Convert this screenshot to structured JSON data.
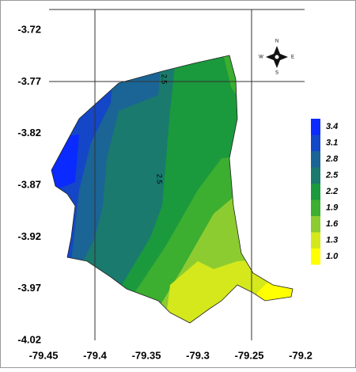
{
  "map": {
    "xlim": [
      -79.45,
      -79.2
    ],
    "ylim": [
      -4.02,
      -3.7
    ],
    "xticks": [
      -79.45,
      -79.4,
      -79.35,
      -79.3,
      -79.25,
      -79.2
    ],
    "yticks": [
      -3.72,
      -3.77,
      -3.82,
      -3.87,
      -3.92,
      -3.97,
      -4.02
    ],
    "legend": {
      "levels": [
        3.4,
        3.1,
        2.8,
        2.5,
        2.2,
        1.9,
        1.6,
        1.3,
        {
          "value": 1,
          "label": "1.0"
        }
      ],
      "colors": [
        "#0a2aff",
        "#1446c8",
        "#1a6496",
        "#1a7a6e",
        "#1a9a3c",
        "#3cae30",
        "#8ccc30",
        "#d4e81c",
        "#ffff00"
      ]
    },
    "contour_labels": [
      "2.5",
      "2.5"
    ],
    "compass": {
      "n": "N",
      "s": "S",
      "e": "E",
      "w": "W"
    }
  }
}
